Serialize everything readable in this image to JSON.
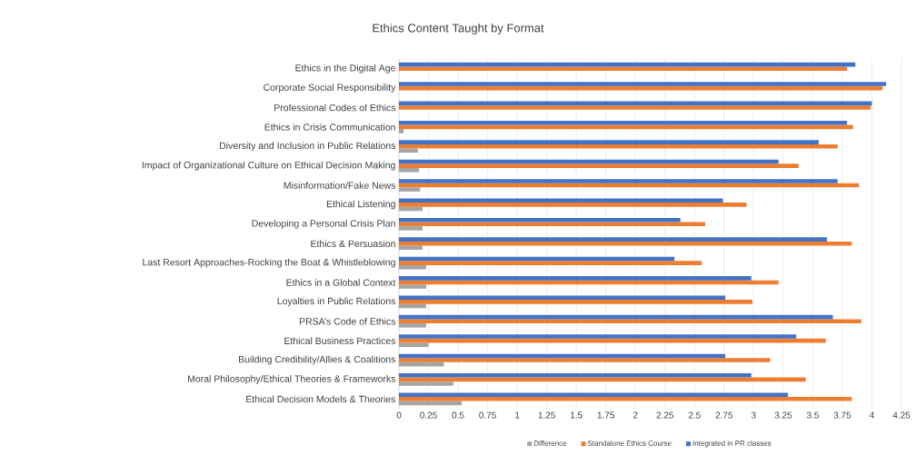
{
  "chart_data": {
    "type": "bar",
    "orientation": "horizontal",
    "title": "Ethics Content Taught by Format",
    "categories": [
      "Ethics in the Digital Age",
      "Corporate Social Responsibility",
      "Professional Codes of Ethics",
      "Ethics in Crisis Communication",
      "Diversity and Inclusion in Public Relations",
      "Impact of Organizational Culture on Ethical Decision Making",
      "Misinformation/Fake News",
      "Ethical Listening",
      "Developing a Personal Crisis Plan",
      "Ethics & Persuasion",
      "Last Resort Approaches-Rocking the Boat & Whistleblowing",
      "Ethics in a Global Context",
      "Loyalties in Public Relations",
      "PRSA’s Code of Ethics",
      "Ethical Business Practices",
      "Building Credibility/Allies & Coalitions",
      "Moral Philosophy/Ethical Theories & Frameworks",
      "Ethical Decision Models & Theories"
    ],
    "series": [
      {
        "name": "Difference",
        "color": "#a5a5a5",
        "values": [
          null,
          null,
          null,
          0.04,
          0.16,
          0.17,
          0.18,
          0.2,
          0.2,
          0.2,
          0.23,
          0.23,
          0.23,
          0.23,
          0.25,
          0.38,
          0.46,
          0.53
        ]
      },
      {
        "name": "Standalone Ethics Course",
        "color": "#ed7d31",
        "values": [
          3.79,
          4.09,
          3.99,
          3.84,
          3.71,
          3.38,
          3.89,
          2.94,
          2.59,
          3.83,
          2.56,
          3.21,
          2.99,
          3.91,
          3.61,
          3.14,
          3.44,
          3.83
        ]
      },
      {
        "name": "Integrated in PR classes",
        "color": "#4472c4",
        "values": [
          3.86,
          4.12,
          4.0,
          3.79,
          3.55,
          3.21,
          3.71,
          2.74,
          2.38,
          3.62,
          2.33,
          2.98,
          2.76,
          3.67,
          3.36,
          2.76,
          2.98,
          3.29
        ]
      }
    ],
    "xlim": [
      0,
      4.25
    ],
    "xticks": [
      0,
      0.25,
      0.5,
      0.75,
      1,
      1.25,
      1.5,
      1.75,
      2,
      2.25,
      2.5,
      2.75,
      3,
      3.25,
      3.5,
      3.75,
      4,
      4.25
    ],
    "grid": "x",
    "legend": "bottom"
  }
}
